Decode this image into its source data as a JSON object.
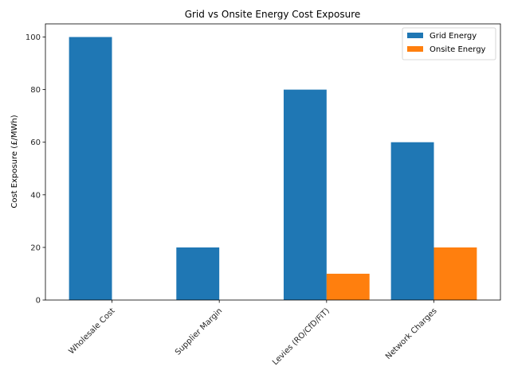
{
  "chart_data": {
    "type": "bar",
    "title": "Grid vs Onsite Energy Cost Exposure",
    "xlabel": "",
    "ylabel": "Cost Exposure (£/MWh)",
    "categories": [
      "Wholesale Cost",
      "Supplier Margin",
      "Levies (RO/CfD/FiT)",
      "Network Charges"
    ],
    "series": [
      {
        "name": "Grid Energy",
        "color": "#1f77b4",
        "values": [
          100,
          20,
          80,
          60
        ]
      },
      {
        "name": "Onsite Energy",
        "color": "#ff7f0e",
        "values": [
          0,
          0,
          10,
          20
        ]
      }
    ],
    "ylim": [
      0,
      105
    ],
    "yticks": [
      0,
      20,
      40,
      60,
      80,
      100
    ],
    "grid": false,
    "legend_position": "top-right"
  }
}
